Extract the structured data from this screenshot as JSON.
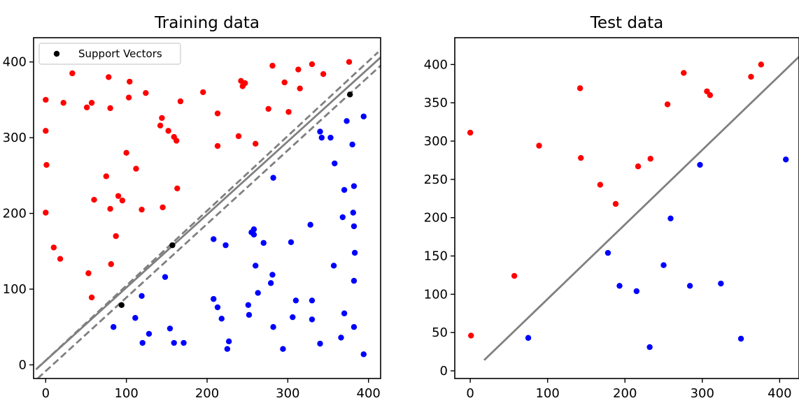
{
  "chart_data": [
    {
      "type": "scatter",
      "title": "Training data",
      "xlabel": "",
      "ylabel": "",
      "xlim": [
        -15,
        415
      ],
      "ylim": [
        -18,
        432
      ],
      "xticks": [
        0,
        100,
        200,
        300,
        400
      ],
      "yticks": [
        0,
        100,
        200,
        300,
        400
      ],
      "grid": false,
      "legend": {
        "placement": "top-left",
        "entries": [
          {
            "label": "Support Vectors",
            "color": "#000000"
          }
        ]
      },
      "series": [
        {
          "color": "#ff0000",
          "points": [
            [
              0,
              350
            ],
            [
              0,
              309
            ],
            [
              1,
              264
            ],
            [
              0,
              201
            ],
            [
              10,
              155
            ],
            [
              18,
              140
            ],
            [
              22,
              346
            ],
            [
              33,
              385
            ],
            [
              51,
              340
            ],
            [
              57,
              346
            ],
            [
              53,
              121
            ],
            [
              57,
              89
            ],
            [
              60,
              218
            ],
            [
              75,
              249
            ],
            [
              78,
              380
            ],
            [
              80,
              339
            ],
            [
              80,
              206
            ],
            [
              81,
              133
            ],
            [
              87,
              170
            ],
            [
              90,
              223
            ],
            [
              95,
              217
            ],
            [
              100,
              280
            ],
            [
              103,
              353
            ],
            [
              104,
              374
            ],
            [
              112,
              259
            ],
            [
              119,
              205
            ],
            [
              124,
              359
            ],
            [
              142,
              316
            ],
            [
              144,
              326
            ],
            [
              145,
              208
            ],
            [
              152,
              309
            ],
            [
              159,
              301
            ],
            [
              162,
              296
            ],
            [
              163,
              233
            ],
            [
              167,
              348
            ],
            [
              195,
              360
            ],
            [
              213,
              332
            ],
            [
              213,
              289
            ],
            [
              239,
              302
            ],
            [
              242,
              375
            ],
            [
              244,
              368
            ],
            [
              247,
              372
            ],
            [
              260,
              292
            ],
            [
              276,
              338
            ],
            [
              281,
              395
            ],
            [
              296,
              373
            ],
            [
              301,
              334
            ],
            [
              313,
              390
            ],
            [
              315,
              365
            ],
            [
              330,
              397
            ],
            [
              344,
              384
            ],
            [
              376,
              400
            ]
          ]
        },
        {
          "color": "#0000ff",
          "points": [
            [
              84,
              50
            ],
            [
              111,
              62
            ],
            [
              119,
              91
            ],
            [
              120,
              29
            ],
            [
              128,
              41
            ],
            [
              148,
              116
            ],
            [
              154,
              48
            ],
            [
              159,
              29
            ],
            [
              171,
              29
            ],
            [
              208,
              166
            ],
            [
              208,
              87
            ],
            [
              213,
              76
            ],
            [
              218,
              61
            ],
            [
              223,
              158
            ],
            [
              225,
              21
            ],
            [
              227,
              31
            ],
            [
              251,
              79
            ],
            [
              252,
              66
            ],
            [
              255,
              175
            ],
            [
              258,
              179
            ],
            [
              258,
              172
            ],
            [
              260,
              131
            ],
            [
              263,
              95
            ],
            [
              270,
              161
            ],
            [
              279,
              108
            ],
            [
              281,
              119
            ],
            [
              282,
              50
            ],
            [
              282,
              247
            ],
            [
              294,
              21
            ],
            [
              304,
              162
            ],
            [
              306,
              63
            ],
            [
              310,
              85
            ],
            [
              328,
              185
            ],
            [
              330,
              85
            ],
            [
              330,
              60
            ],
            [
              340,
              308
            ],
            [
              340,
              28
            ],
            [
              342,
              300
            ],
            [
              353,
              300
            ],
            [
              357,
              131
            ],
            [
              358,
              266
            ],
            [
              366,
              36
            ],
            [
              368,
              195
            ],
            [
              370,
              231
            ],
            [
              370,
              68
            ],
            [
              373,
              322
            ],
            [
              380,
              291
            ],
            [
              381,
              201
            ],
            [
              382,
              50
            ],
            [
              382,
              236
            ],
            [
              382,
              183
            ],
            [
              382,
              111
            ],
            [
              383,
              148
            ],
            [
              394,
              328
            ],
            [
              394,
              14
            ]
          ]
        },
        {
          "color": "#000000",
          "points": [
            [
              94,
              79
            ],
            [
              157,
              158
            ],
            [
              377,
              357
            ]
          ]
        }
      ],
      "lines": [
        {
          "type": "decision-boundary",
          "style": "solid",
          "color": "#808080",
          "from": [
            -10,
            -4
          ],
          "to": [
            415,
            406
          ]
        },
        {
          "type": "margin",
          "style": "dashed",
          "color": "#808080",
          "from": [
            -12,
            -6
          ],
          "to": [
            412,
            413
          ]
        },
        {
          "type": "margin",
          "style": "dashed",
          "color": "#808080",
          "from": [
            -10,
            -18
          ],
          "to": [
            420,
            400
          ]
        }
      ]
    },
    {
      "type": "scatter",
      "title": "Test data",
      "xlabel": "",
      "ylabel": "",
      "xlim": [
        -20,
        425
      ],
      "ylim": [
        -10,
        435
      ],
      "xticks": [
        0,
        100,
        200,
        300,
        400
      ],
      "yticks": [
        0,
        50,
        100,
        150,
        200,
        250,
        300,
        350,
        400
      ],
      "grid": false,
      "series": [
        {
          "color": "#ff0000",
          "points": [
            [
              0,
              311
            ],
            [
              1,
              46
            ],
            [
              57,
              124
            ],
            [
              89,
              294
            ],
            [
              142,
              369
            ],
            [
              143,
              278
            ],
            [
              168,
              243
            ],
            [
              188,
              218
            ],
            [
              217,
              267
            ],
            [
              233,
              277
            ],
            [
              255,
              348
            ],
            [
              276,
              389
            ],
            [
              306,
              365
            ],
            [
              310,
              360
            ],
            [
              363,
              384
            ],
            [
              376,
              400
            ]
          ]
        },
        {
          "color": "#0000ff",
          "points": [
            [
              75,
              43
            ],
            [
              178,
              154
            ],
            [
              193,
              111
            ],
            [
              215,
              104
            ],
            [
              232,
              31
            ],
            [
              250,
              138
            ],
            [
              259,
              199
            ],
            [
              284,
              111
            ],
            [
              297,
              269
            ],
            [
              324,
              114
            ],
            [
              350,
              42
            ],
            [
              408,
              276
            ]
          ]
        }
      ],
      "lines": [
        {
          "type": "decision-boundary",
          "style": "solid",
          "color": "#808080",
          "from": [
            18,
            14
          ],
          "to": [
            430,
            415
          ]
        }
      ]
    }
  ]
}
